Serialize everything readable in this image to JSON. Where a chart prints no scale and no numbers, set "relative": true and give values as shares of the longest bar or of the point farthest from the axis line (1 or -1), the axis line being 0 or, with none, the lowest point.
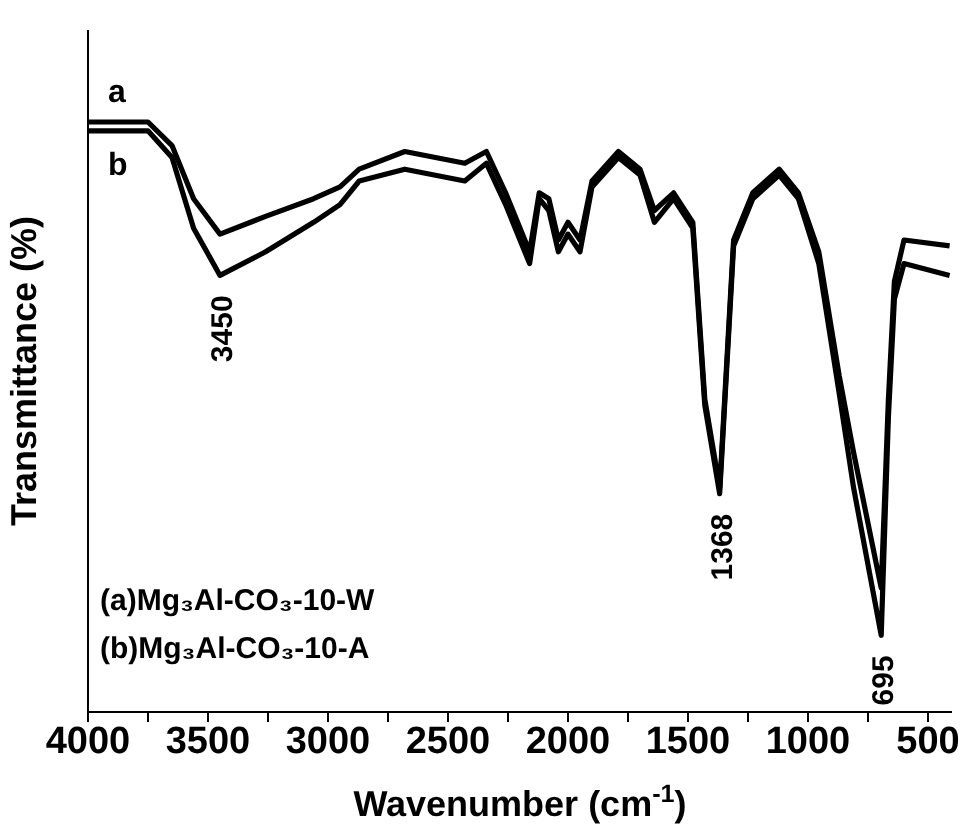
{
  "chart_data": {
    "type": "line",
    "relative": true,
    "xlabel": "Wavenumber (cm$^{-1}$)",
    "ylabel": "Transmittance (%)",
    "x": [
      4000,
      3750,
      3650,
      3560,
      3450,
      3260,
      3060,
      2950,
      2870,
      2680,
      2430,
      2340,
      2260,
      2160,
      2120,
      2080,
      2040,
      2000,
      1950,
      1900,
      1790,
      1700,
      1640,
      1560,
      1480,
      1430,
      1368,
      1310,
      1230,
      1120,
      1040,
      955,
      870,
      810,
      695,
      665,
      640,
      600,
      410
    ],
    "xlim": [
      4000,
      400
    ],
    "xticks": [
      4000,
      {
        "value": 3750,
        "label": null
      },
      3500,
      {
        "value": 3250,
        "label": null
      },
      3000,
      {
        "value": 2750,
        "label": null
      },
      2500,
      {
        "value": 2250,
        "label": null
      },
      2000,
      {
        "value": 1750,
        "label": null
      },
      1500,
      {
        "value": 1250,
        "label": null
      },
      1000,
      {
        "value": 750,
        "label": null
      },
      500
    ],
    "series": [
      {
        "name": "a",
        "color": "#000000",
        "values": [
          1.0,
          1.0,
          0.96,
          0.87,
          0.81,
          0.84,
          0.87,
          0.89,
          0.92,
          0.95,
          0.93,
          0.95,
          0.88,
          0.78,
          0.88,
          0.87,
          0.8,
          0.83,
          0.8,
          0.9,
          0.95,
          0.92,
          0.85,
          0.88,
          0.83,
          0.53,
          0.38,
          0.8,
          0.88,
          0.92,
          0.88,
          0.78,
          0.57,
          0.44,
          0.21,
          0.53,
          0.73,
          0.8,
          0.79
        ]
      },
      {
        "name": "b",
        "color": "#000000",
        "values": [
          0.985,
          0.985,
          0.94,
          0.82,
          0.74,
          0.78,
          0.83,
          0.86,
          0.9,
          0.92,
          0.9,
          0.93,
          0.86,
          0.76,
          0.87,
          0.85,
          0.78,
          0.81,
          0.78,
          0.89,
          0.94,
          0.91,
          0.83,
          0.87,
          0.82,
          0.52,
          0.37,
          0.79,
          0.87,
          0.91,
          0.87,
          0.76,
          0.54,
          0.38,
          0.13,
          0.5,
          0.7,
          0.76,
          0.74
        ]
      }
    ],
    "annotations": [
      {
        "text": "3450",
        "x": 3450,
        "y": 0.74
      },
      {
        "text": "1368",
        "x": 1368,
        "y": 0.37
      },
      {
        "text": "695",
        "x": 695,
        "y": 0.13
      },
      "(a)Mg₃Al-CO₃-10-W",
      "(b)Mg₃Al-CO₃-10-A"
    ],
    "legend": false,
    "grid": false,
    "marker": "none",
    "line_style": "solid"
  }
}
